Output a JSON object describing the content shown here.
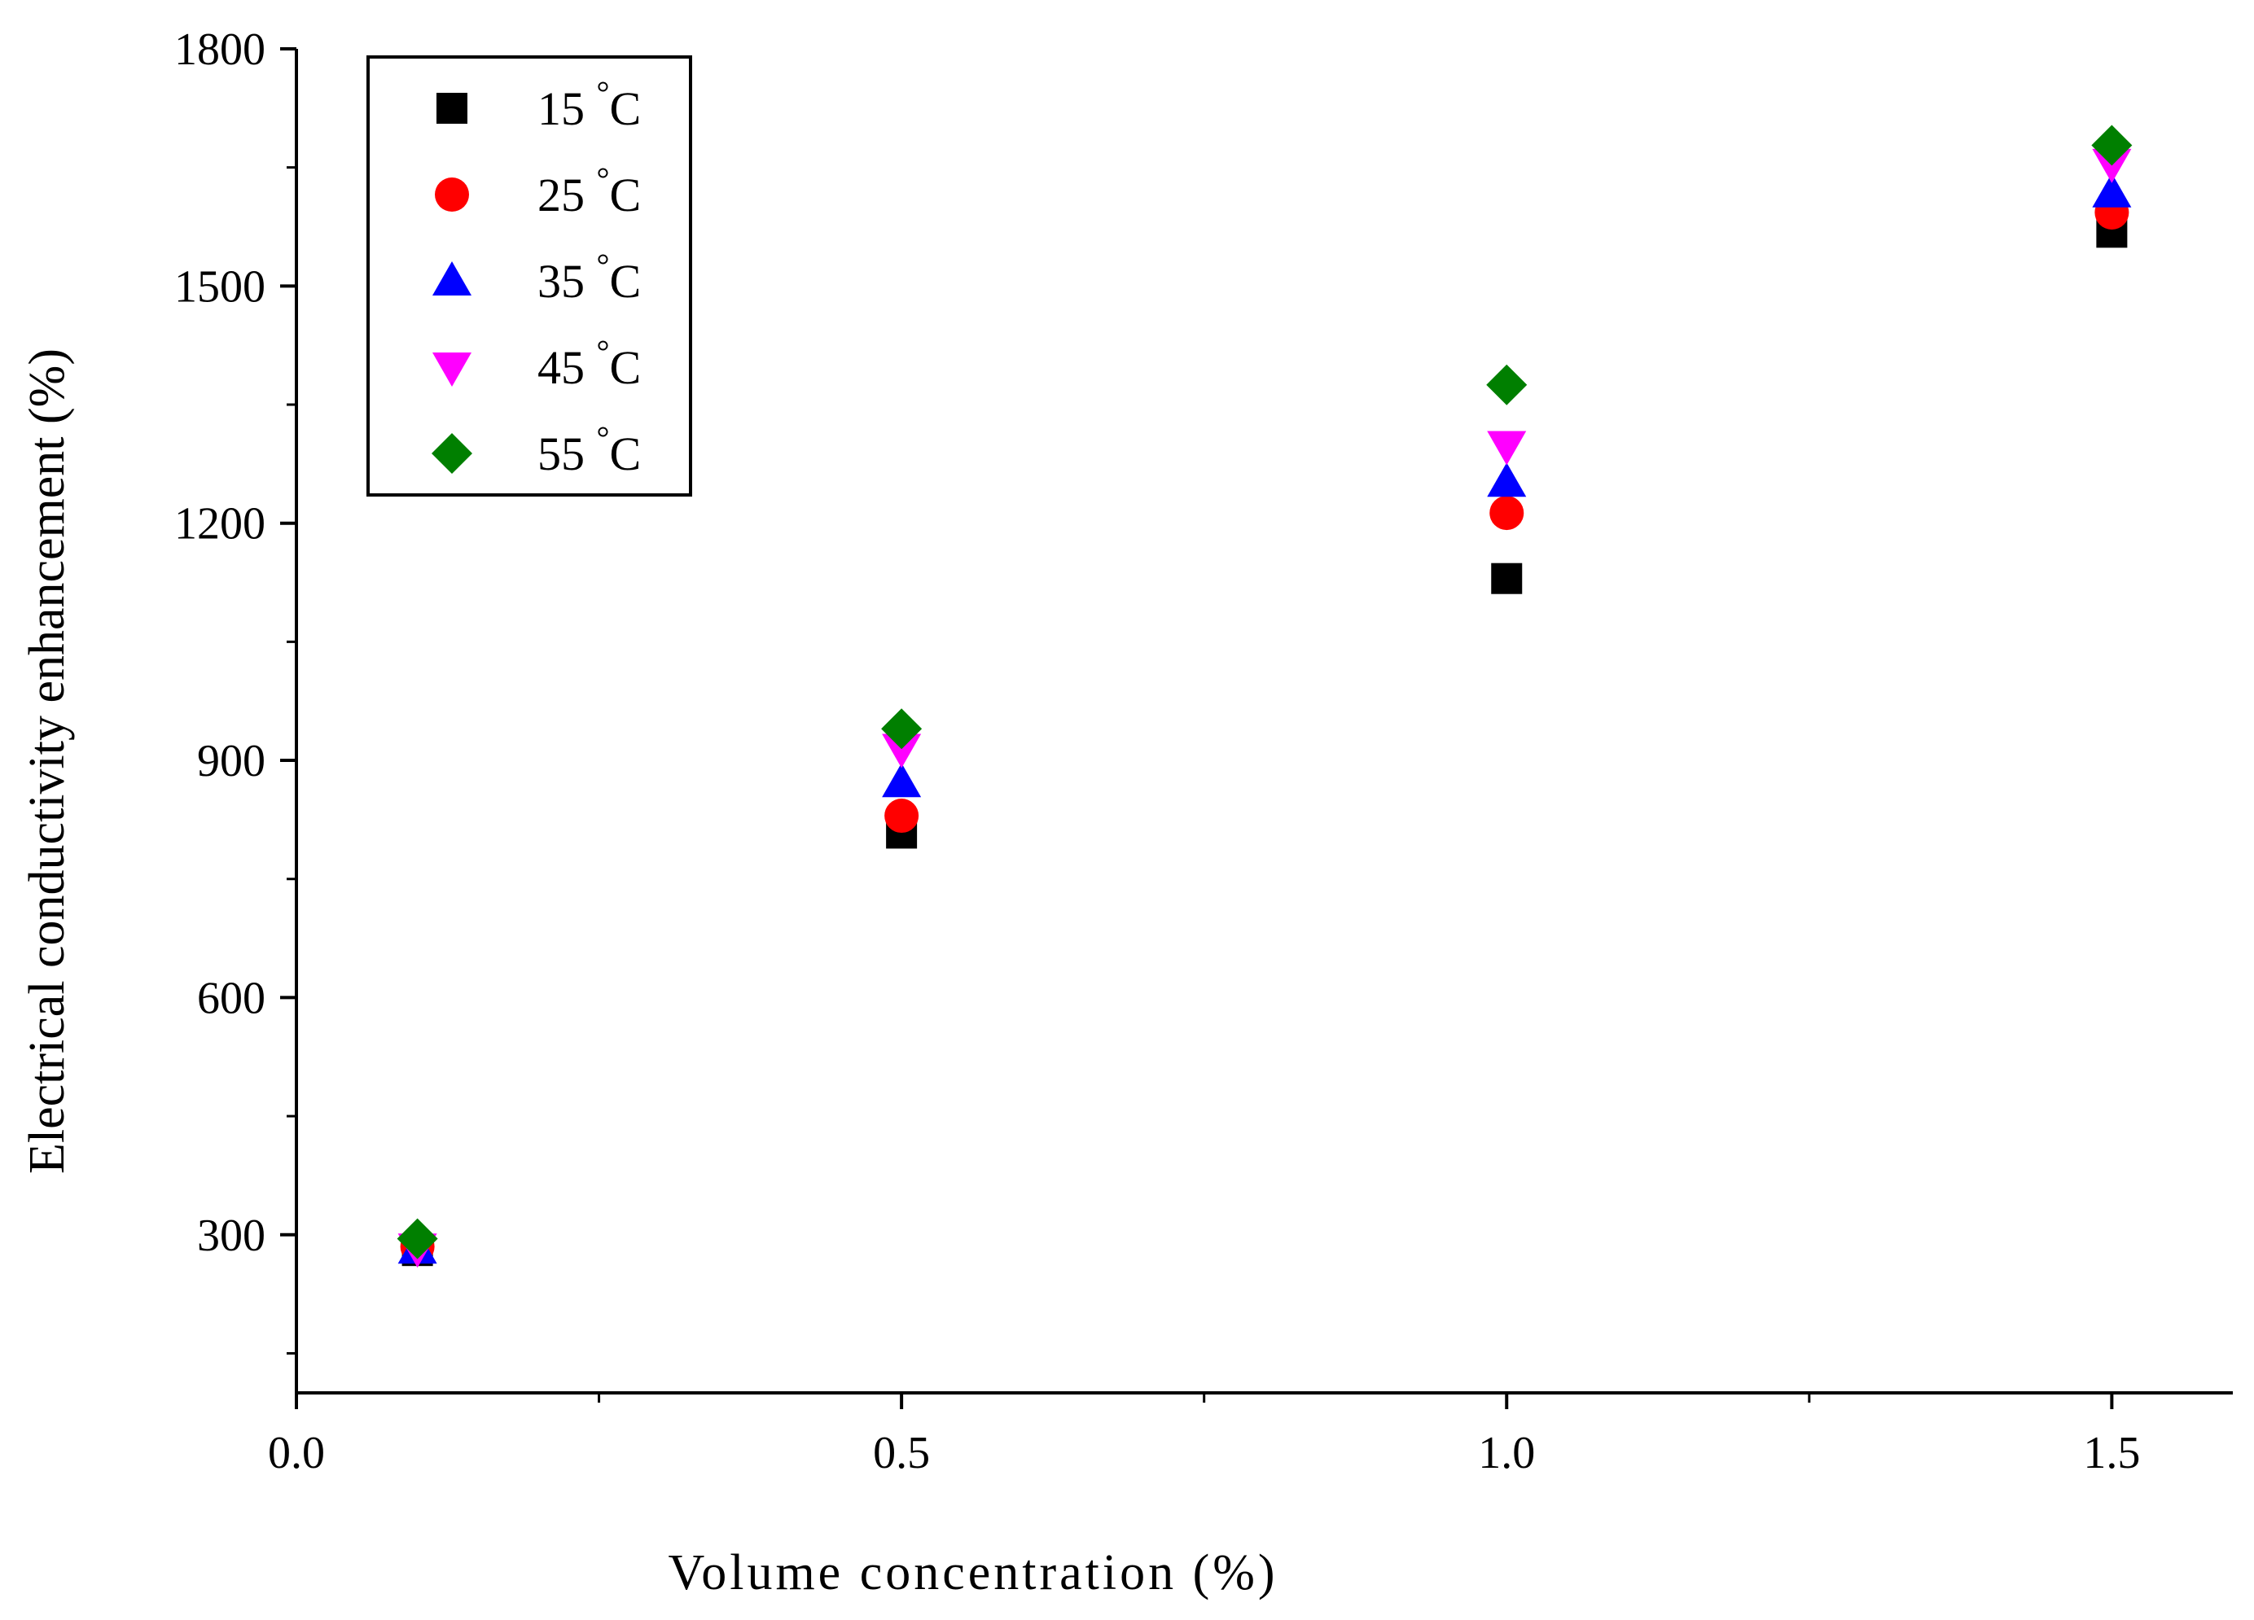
{
  "chart_data": {
    "type": "scatter",
    "title": "",
    "xlabel": "Volume concentration (%)",
    "ylabel": "Electrical conductivity enhancement (%)",
    "xlim": [
      0.0,
      1.6
    ],
    "ylim": [
      100,
      1800
    ],
    "xticks": [
      0.0,
      0.5,
      1.0,
      1.5
    ],
    "xtick_labels": [
      "0.0",
      "0.5",
      "1.0",
      "1.5"
    ],
    "xminor": [
      0.25,
      0.75,
      1.25
    ],
    "yticks": [
      300,
      600,
      900,
      1200,
      1500,
      1800
    ],
    "ytick_labels": [
      "300",
      "600",
      "900",
      "1200",
      "1500",
      "1800"
    ],
    "yminor": [
      150,
      450,
      750,
      1050,
      1350,
      1650
    ],
    "grid": false,
    "legend_position": "top-left",
    "series": [
      {
        "name": "15 °C",
        "label_num": "15",
        "label_unit": "C",
        "marker": "square",
        "color": "#000000",
        "x": [
          0.1,
          0.5,
          1.0,
          1.5
        ],
        "y": [
          280,
          808,
          1130,
          1568
        ]
      },
      {
        "name": "25 °C",
        "label_num": "25",
        "label_unit": "C",
        "marker": "circle",
        "color": "#ff0000",
        "x": [
          0.1,
          0.5,
          1.0,
          1.5
        ],
        "y": [
          285,
          830,
          1213,
          1593
        ]
      },
      {
        "name": "35 °C",
        "label_num": "35",
        "label_unit": "C",
        "marker": "triangle-up",
        "color": "#0000ff",
        "x": [
          0.1,
          0.5,
          1.0,
          1.5
        ],
        "y": [
          282,
          872,
          1252,
          1618
        ]
      },
      {
        "name": "45 °C",
        "label_num": "45",
        "label_unit": "C",
        "marker": "triangle-down",
        "color": "#ff00ff",
        "x": [
          0.1,
          0.5,
          1.0,
          1.5
        ],
        "y": [
          283,
          915,
          1298,
          1655
        ]
      },
      {
        "name": "55 °C",
        "label_num": "55",
        "label_unit": "C",
        "marker": "diamond",
        "color": "#007f00",
        "x": [
          0.1,
          0.5,
          1.0,
          1.5
        ],
        "y": [
          295,
          940,
          1375,
          1678
        ]
      }
    ]
  }
}
